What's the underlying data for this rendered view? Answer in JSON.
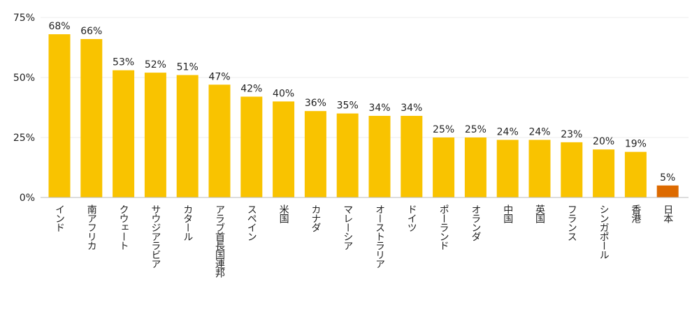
{
  "chart_data": {
    "type": "bar",
    "title": "",
    "xlabel": "",
    "ylabel": "",
    "ylim": [
      0,
      75
    ],
    "yticks": [
      "0%",
      "25%",
      "50%",
      "75%"
    ],
    "ytick_values": [
      0,
      25,
      50,
      75
    ],
    "grid": true,
    "categories": [
      "インド",
      "南アフリカ",
      "クウェート",
      "サウジアラビア",
      "カタール",
      "アラブ首長国連邦",
      "スペイン",
      "米国",
      "カナダ",
      "マレーシア",
      "オーストラリア",
      "ドイツ",
      "ポーランド",
      "オランダ",
      "中国",
      "英国",
      "フランス",
      "シンガポール",
      "香港",
      "日本"
    ],
    "values": [
      68,
      66,
      53,
      52,
      51,
      47,
      42,
      40,
      36,
      35,
      34,
      34,
      25,
      25,
      24,
      24,
      23,
      20,
      19,
      5
    ],
    "data_labels": [
      "68%",
      "66%",
      "53%",
      "52%",
      "51%",
      "47%",
      "42%",
      "40%",
      "36%",
      "35%",
      "34%",
      "34%",
      "25%",
      "25%",
      "24%",
      "24%",
      "23%",
      "20%",
      "19%",
      "5%"
    ],
    "colors": {
      "default": "#F9C300",
      "highlight": "#DD6A00"
    },
    "highlight_category": "日本"
  }
}
